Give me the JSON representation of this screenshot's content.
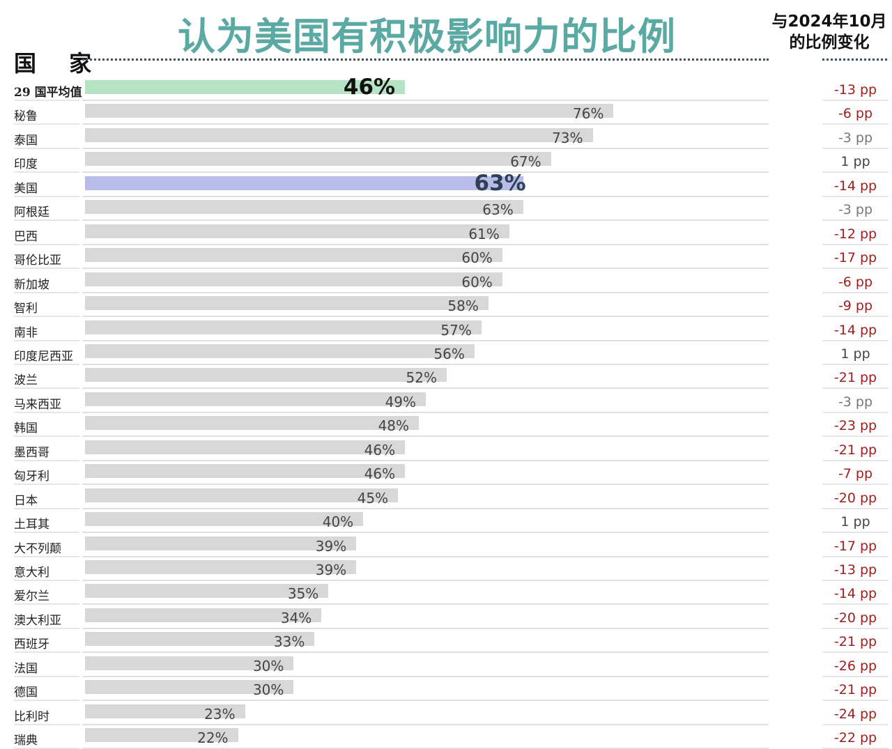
{
  "chart_data": {
    "type": "bar",
    "title": "认为美国有积极影响力的比例",
    "xlabel": "",
    "ylabel": "国 家",
    "change_header": "与2024年10月的比例变化",
    "xlim": [
      0,
      100
    ],
    "colors": {
      "bar": "#d8d8d8",
      "average_bar": "#b6e3c4",
      "usa_bar": "#b7bde8",
      "usa_value": "#2f3f56",
      "negative_change": "#a01e1e",
      "small_change": "#777777",
      "positive_change": "#444444"
    },
    "rows": [
      {
        "label": "29 国平均值",
        "value": 46,
        "value_label": "46%",
        "change": "-13 pp",
        "highlight": "average"
      },
      {
        "label": "秘鲁",
        "value": 76,
        "value_label": "76%",
        "change": "-6 pp"
      },
      {
        "label": "泰国",
        "value": 73,
        "value_label": "73%",
        "change": "-3 pp"
      },
      {
        "label": "印度",
        "value": 67,
        "value_label": "67%",
        "change": "1 pp"
      },
      {
        "label": "美国",
        "value": 63,
        "value_label": "63%",
        "change": "-14 pp",
        "highlight": "usa"
      },
      {
        "label": "阿根廷",
        "value": 63,
        "value_label": "63%",
        "change": "-3 pp"
      },
      {
        "label": "巴西",
        "value": 61,
        "value_label": "61%",
        "change": "-12 pp"
      },
      {
        "label": "哥伦比亚",
        "value": 60,
        "value_label": "60%",
        "change": "-17 pp"
      },
      {
        "label": "新加坡",
        "value": 60,
        "value_label": "60%",
        "change": "-6 pp"
      },
      {
        "label": "智利",
        "value": 58,
        "value_label": "58%",
        "change": "-9 pp"
      },
      {
        "label": "南非",
        "value": 57,
        "value_label": "57%",
        "change": "-14 pp"
      },
      {
        "label": "印度尼西亚",
        "value": 56,
        "value_label": "56%",
        "change": "1 pp"
      },
      {
        "label": "波兰",
        "value": 52,
        "value_label": "52%",
        "change": "-21 pp"
      },
      {
        "label": "马来西亚",
        "value": 49,
        "value_label": "49%",
        "change": "-3 pp"
      },
      {
        "label": "韩国",
        "value": 48,
        "value_label": "48%",
        "change": "-23 pp"
      },
      {
        "label": "墨西哥",
        "value": 46,
        "value_label": "46%",
        "change": "-21 pp"
      },
      {
        "label": "匈牙利",
        "value": 46,
        "value_label": "46%",
        "change": "-7 pp"
      },
      {
        "label": "日本",
        "value": 45,
        "value_label": "45%",
        "change": "-20 pp"
      },
      {
        "label": "土耳其",
        "value": 40,
        "value_label": "40%",
        "change": "1 pp"
      },
      {
        "label": "大不列颠",
        "value": 39,
        "value_label": "39%",
        "change": "-17 pp"
      },
      {
        "label": "意大利",
        "value": 39,
        "value_label": "39%",
        "change": "-13 pp"
      },
      {
        "label": "爱尔兰",
        "value": 35,
        "value_label": "35%",
        "change": "-14 pp"
      },
      {
        "label": "澳大利亚",
        "value": 34,
        "value_label": "34%",
        "change": "-20 pp"
      },
      {
        "label": "西班牙",
        "value": 33,
        "value_label": "33%",
        "change": "-21 pp"
      },
      {
        "label": "法国",
        "value": 30,
        "value_label": "30%",
        "change": "-26 pp"
      },
      {
        "label": "德国",
        "value": 30,
        "value_label": "30%",
        "change": "-21 pp"
      },
      {
        "label": "比利时",
        "value": 23,
        "value_label": "23%",
        "change": "-24 pp"
      },
      {
        "label": "瑞典",
        "value": 22,
        "value_label": "22%",
        "change": "-22 pp"
      }
    ]
  },
  "header": {
    "title": "认为美国有积极影响力的比例",
    "country_col": "国 家",
    "change_col_line1": "与2024年10月",
    "change_col_line2": "的比例变化"
  }
}
